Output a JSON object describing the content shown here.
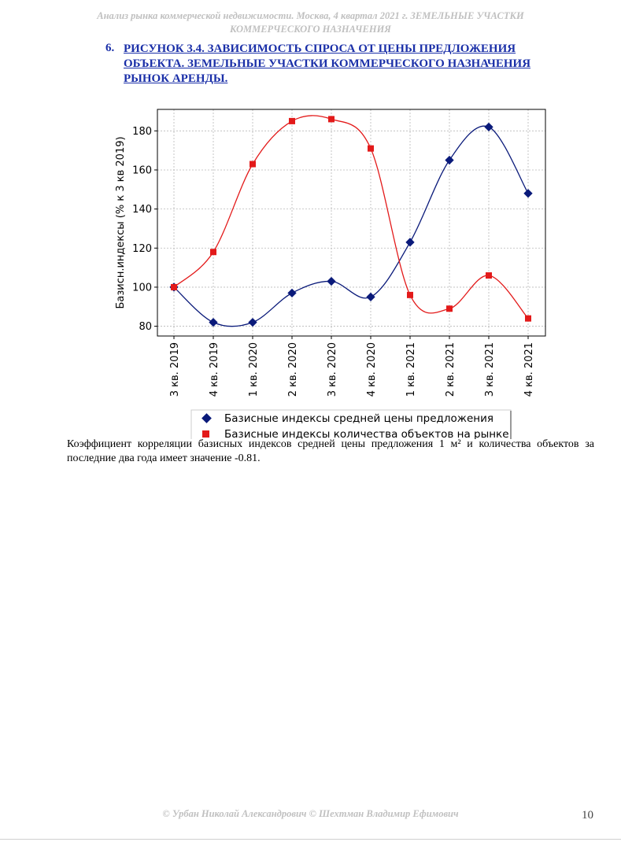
{
  "header": {
    "line1": "Анализ рынка коммерческой недвижимости.   Москва, 4 квартал 2021 г.   ЗЕМЕЛЬНЫЕ УЧАСТКИ",
    "line2": "КОММЕРЧЕСКОГО НАЗНАЧЕНИЯ"
  },
  "figure": {
    "number": "6.",
    "title": "РИСУНОК 3.4. ЗАВИСИМОСТЬ СПРОСА ОТ ЦЕНЫ ПРЕДЛОЖЕНИЯ ОБЪЕКТА.  ЗЕМЕЛЬНЫЕ УЧАСТКИ КОММЕРЧЕСКОГО НАЗНАЧЕНИЯ РЫНОК АРЕНДЫ."
  },
  "chart_data": {
    "type": "line",
    "ylabel": "Базисн.индексы (% к 3 кв 2019)",
    "xlabel": "",
    "ylim": [
      75,
      191
    ],
    "yticks": [
      80,
      100,
      120,
      140,
      160,
      180
    ],
    "grid": true,
    "categories": [
      "3 кв. 2019",
      "4 кв. 2019",
      "1 кв. 2020",
      "2 кв. 2020",
      "3 кв. 2020",
      "4 кв. 2020",
      "1 кв. 2021",
      "2 кв. 2021",
      "3 кв. 2021",
      "4 кв. 2021"
    ],
    "series": [
      {
        "name": "Базисные индексы средней цены предложения",
        "color": "#0a1a7a",
        "marker": "diamond",
        "values": [
          100,
          82,
          82,
          97,
          103,
          95,
          123,
          165,
          182,
          148
        ]
      },
      {
        "name": "Базисные индексы количества объектов на рынке",
        "color": "#e31a1a",
        "marker": "square",
        "values": [
          100,
          118,
          163,
          185,
          186,
          171,
          96,
          89,
          106,
          84
        ]
      }
    ],
    "legend_position": "bottom"
  },
  "body": {
    "text": "Коэффициент корреляции базисных индексов средней цены предложения 1 м² и количества объектов за последние два года имеет значение -0.81."
  },
  "footer": {
    "text": "© Урбан Николай Александрович   © Шехтман Владимир Ефимович",
    "page": "10"
  }
}
